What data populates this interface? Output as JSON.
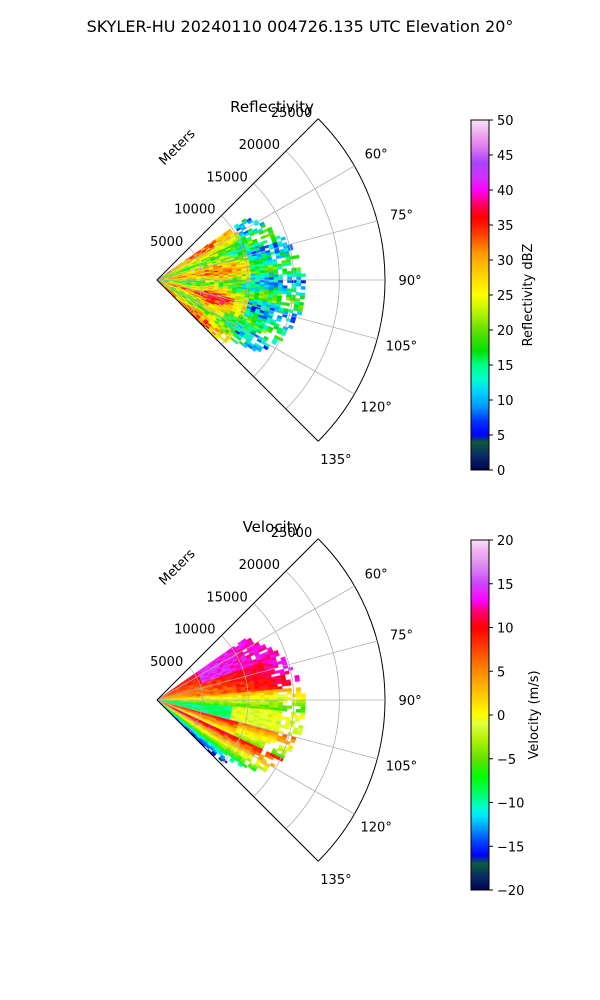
{
  "title": "SKYLER-HU  20240110  004726.135 UTC Elevation 20°",
  "range_label": "Meters",
  "chart_data": [
    {
      "type": "polar-sector",
      "title": "Reflectivity",
      "range_ticks": [
        5000,
        10000,
        15000,
        20000,
        25000
      ],
      "range_tick_labels": [
        "5000",
        "10000",
        "15000",
        "20000",
        "25000"
      ],
      "range_max": 25000,
      "azimuth_ticks": [
        60,
        75,
        90,
        105,
        120,
        135
      ],
      "azimuth_tick_labels": [
        "60°",
        "75°",
        "90°",
        "105°",
        "120°",
        "135°"
      ],
      "azimuth_range": [
        45,
        135
      ],
      "data_extent": {
        "azimuth_min": 55,
        "azimuth_max": 135,
        "range_min_m": 0,
        "range_max_m": 16000
      },
      "colorbar": {
        "label": "Reflectivity dBZ",
        "min": 0,
        "max": 50,
        "ticks": [
          0,
          5,
          10,
          15,
          20,
          25,
          30,
          35,
          40,
          45,
          50
        ],
        "tick_labels": [
          "0",
          "5",
          "10",
          "15",
          "20",
          "25",
          "30",
          "35",
          "40",
          "45",
          "50"
        ],
        "stops": [
          {
            "v": 0,
            "c": "#00004d"
          },
          {
            "v": 2,
            "c": "#0a2a6a"
          },
          {
            "v": 4,
            "c": "#0e5a3a"
          },
          {
            "v": 5,
            "c": "#0000ff"
          },
          {
            "v": 7,
            "c": "#0033ff"
          },
          {
            "v": 9,
            "c": "#0099ff"
          },
          {
            "v": 11,
            "c": "#00ccff"
          },
          {
            "v": 13,
            "c": "#00ffcc"
          },
          {
            "v": 15,
            "c": "#00ff88"
          },
          {
            "v": 17,
            "c": "#00e000"
          },
          {
            "v": 20,
            "c": "#66e000"
          },
          {
            "v": 22,
            "c": "#a8f000"
          },
          {
            "v": 25,
            "c": "#ffff00"
          },
          {
            "v": 28,
            "c": "#ffd000"
          },
          {
            "v": 31,
            "c": "#ff9900"
          },
          {
            "v": 34,
            "c": "#ff3300"
          },
          {
            "v": 36,
            "c": "#ff0000"
          },
          {
            "v": 38,
            "c": "#ff0066"
          },
          {
            "v": 40,
            "c": "#ff00ff"
          },
          {
            "v": 42,
            "c": "#cc33ff"
          },
          {
            "v": 44,
            "c": "#aa44ff"
          },
          {
            "v": 46,
            "c": "#dd77ee"
          },
          {
            "v": 48,
            "c": "#eea9ee"
          },
          {
            "v": 50,
            "c": "#fbe3fb"
          }
        ]
      }
    },
    {
      "type": "polar-sector",
      "title": "Velocity",
      "range_ticks": [
        5000,
        10000,
        15000,
        20000,
        25000
      ],
      "range_tick_labels": [
        "5000",
        "10000",
        "15000",
        "20000",
        "25000"
      ],
      "range_max": 25000,
      "azimuth_ticks": [
        60,
        75,
        90,
        105,
        120,
        135
      ],
      "azimuth_tick_labels": [
        "60°",
        "75°",
        "90°",
        "105°",
        "120°",
        "135°"
      ],
      "azimuth_range": [
        45,
        135
      ],
      "data_extent": {
        "azimuth_min": 55,
        "azimuth_max": 135,
        "range_min_m": 0,
        "range_max_m": 16000
      },
      "colorbar": {
        "label": "Velocity (m/s)",
        "min": -20,
        "max": 20,
        "ticks": [
          -20,
          -15,
          -10,
          -5,
          0,
          5,
          10,
          15,
          20
        ],
        "tick_labels": [
          "−20",
          "−15",
          "−10",
          "−5",
          "0",
          "5",
          "10",
          "15",
          "20"
        ],
        "stops": [
          {
            "v": -20,
            "c": "#00004d"
          },
          {
            "v": -18.5,
            "c": "#0a2a6a"
          },
          {
            "v": -17,
            "c": "#0e5a3a"
          },
          {
            "v": -16,
            "c": "#0000ff"
          },
          {
            "v": -14.5,
            "c": "#0044ff"
          },
          {
            "v": -13,
            "c": "#0099ff"
          },
          {
            "v": -11.5,
            "c": "#00e5ff"
          },
          {
            "v": -10.5,
            "c": "#00ffcc"
          },
          {
            "v": -9,
            "c": "#00ff66"
          },
          {
            "v": -7,
            "c": "#00ff00"
          },
          {
            "v": -5,
            "c": "#66e000"
          },
          {
            "v": -3,
            "c": "#a8f000"
          },
          {
            "v": -1,
            "c": "#e0ff40"
          },
          {
            "v": 0,
            "c": "#ffff00"
          },
          {
            "v": 2,
            "c": "#ffd000"
          },
          {
            "v": 4,
            "c": "#ffa000"
          },
          {
            "v": 6,
            "c": "#ff7000"
          },
          {
            "v": 8,
            "c": "#ff3300"
          },
          {
            "v": 10,
            "c": "#ff0000"
          },
          {
            "v": 12,
            "c": "#ff0080"
          },
          {
            "v": 13,
            "c": "#ff00ff"
          },
          {
            "v": 15,
            "c": "#cc44ff"
          },
          {
            "v": 17,
            "c": "#dd88ee"
          },
          {
            "v": 19,
            "c": "#f0bbf0"
          },
          {
            "v": 20,
            "c": "#fbe3fb"
          }
        ]
      }
    }
  ]
}
